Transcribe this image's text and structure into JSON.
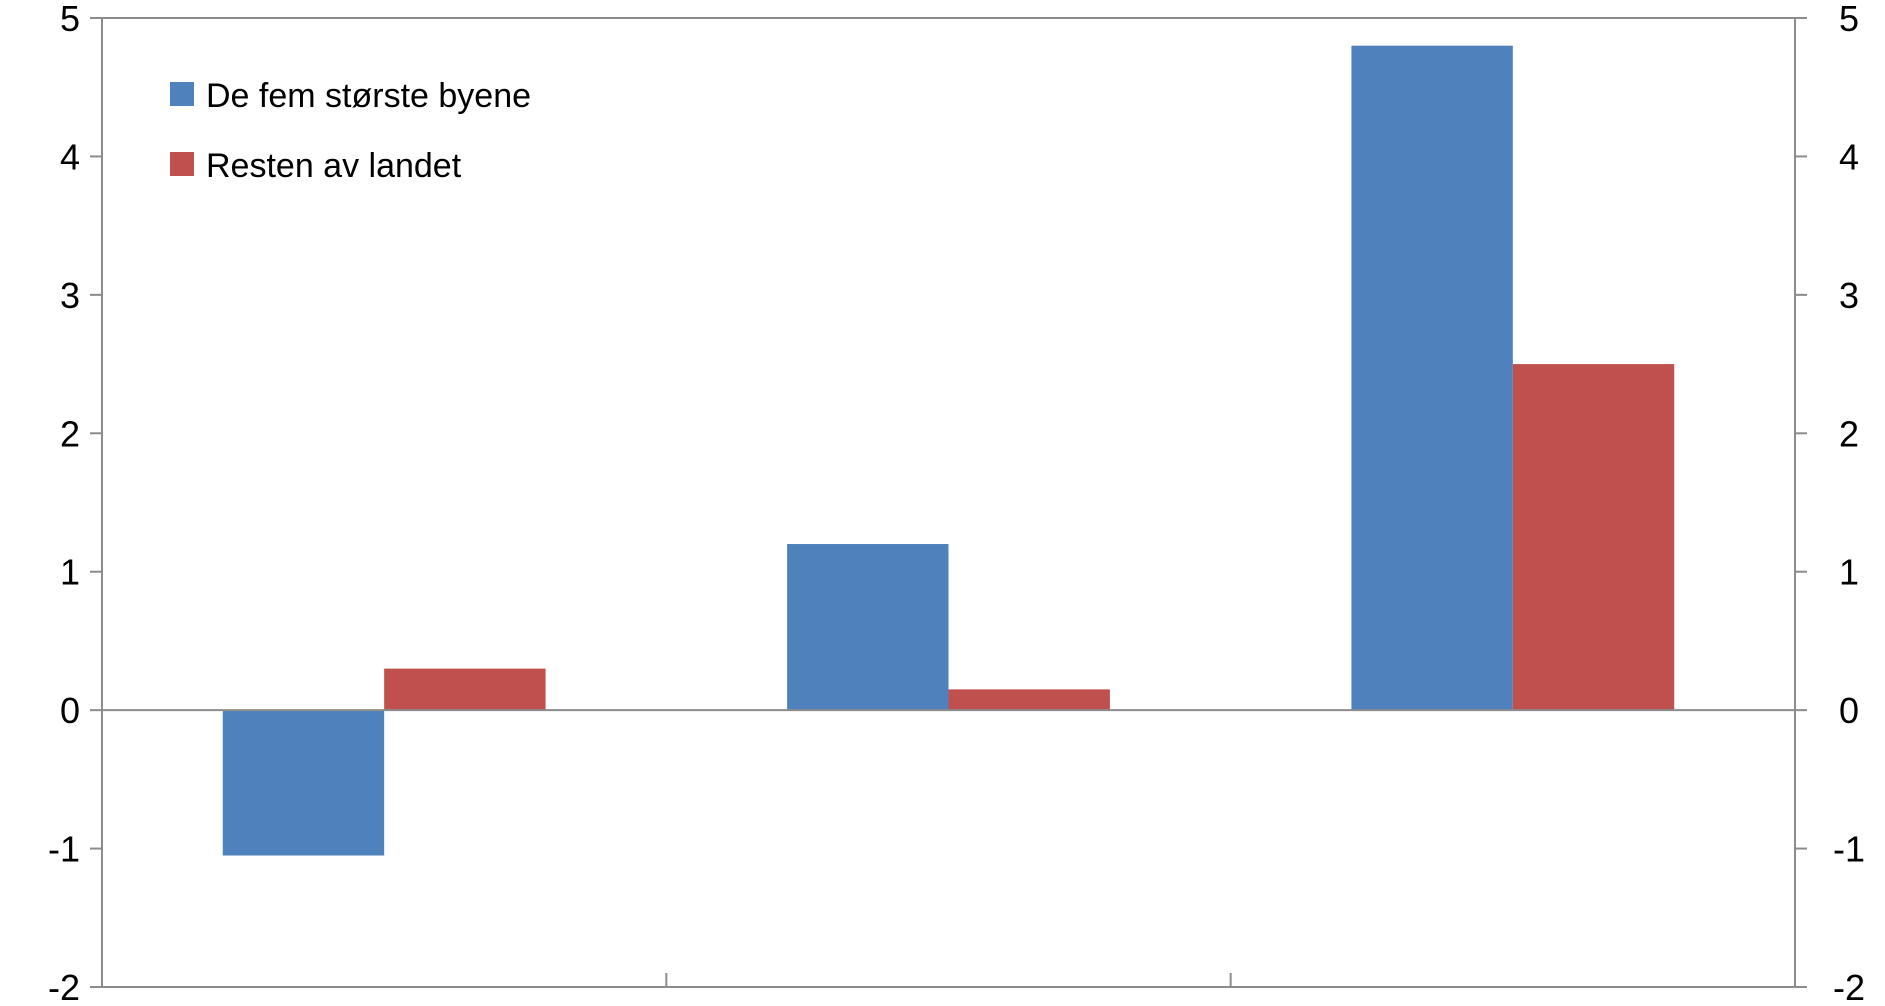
{
  "chart_data": {
    "type": "bar",
    "categories": [
      "",
      "",
      ""
    ],
    "series": [
      {
        "name": "De fem største byene",
        "values": [
          -1.05,
          1.2,
          4.8
        ],
        "color": "#4F81BD"
      },
      {
        "name": "Resten av landet",
        "values": [
          0.3,
          0.15,
          2.5
        ],
        "color": "#C0504D"
      }
    ],
    "title": "",
    "xlabel": "",
    "ylabel": "",
    "ylim": [
      -2,
      5
    ],
    "yticks": [
      "-2",
      "-1",
      "0",
      "1",
      "2",
      "3",
      "4",
      "5"
    ],
    "secondary_yticks": [
      "-2",
      "-1",
      "0",
      "1",
      "2",
      "3",
      "4",
      "5"
    ],
    "legend_position": "top-left",
    "grid": false
  }
}
